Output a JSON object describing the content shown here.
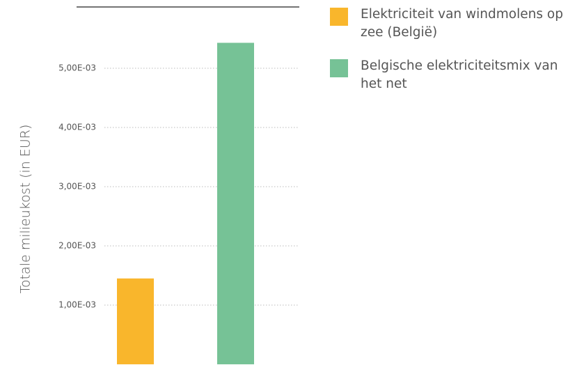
{
  "chart_data": {
    "type": "bar",
    "ylabel": "Totale milieukost (in EUR)",
    "series": [
      {
        "name": "Elektriciteit van windmolens op zee (België)",
        "color": "#f9b62c",
        "values": [
          0.00145
        ]
      },
      {
        "name": "Belgische elektriciteitsmix van het net",
        "color": "#76c296",
        "values": [
          0.00543
        ]
      }
    ],
    "ylim": [
      0,
      0.006
    ],
    "yticks": [
      {
        "value": 0.001,
        "label": "1,00E-03"
      },
      {
        "value": 0.002,
        "label": "2,00E-03"
      },
      {
        "value": 0.003,
        "label": "3,00E-03"
      },
      {
        "value": 0.004,
        "label": "4,00E-03"
      },
      {
        "value": 0.005,
        "label": "5,00E-03"
      }
    ],
    "grid": true,
    "legend": "right"
  }
}
